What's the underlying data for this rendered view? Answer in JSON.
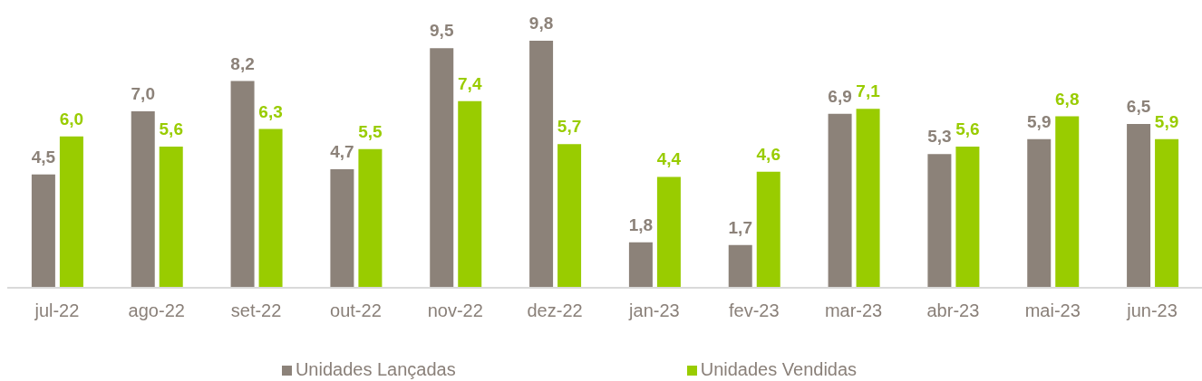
{
  "chart_data": {
    "type": "bar",
    "categories": [
      "jul-22",
      "ago-22",
      "set-22",
      "out-22",
      "nov-22",
      "dez-22",
      "jan-23",
      "fev-23",
      "mar-23",
      "abr-23",
      "mai-23",
      "jun-23"
    ],
    "series": [
      {
        "name": "Unidades Lançadas",
        "color": "#8c8279",
        "values": [
          4.5,
          7.0,
          8.2,
          4.7,
          9.5,
          9.8,
          1.8,
          1.7,
          6.9,
          5.3,
          5.9,
          6.5
        ],
        "value_labels": [
          "4,5",
          "7,0",
          "8,2",
          "4,7",
          "9,5",
          "9,8",
          "1,8",
          "1,7",
          "6,9",
          "5,3",
          "5,9",
          "6,5"
        ]
      },
      {
        "name": "Unidades Vendidas",
        "color": "#99cc00",
        "values": [
          6.0,
          5.6,
          6.3,
          5.5,
          7.4,
          5.7,
          4.4,
          4.6,
          7.1,
          5.6,
          6.8,
          5.9
        ],
        "value_labels": [
          "6,0",
          "5,6",
          "6,3",
          "5,5",
          "7,4",
          "5,7",
          "4,4",
          "4,6",
          "7,1",
          "5,6",
          "6,8",
          "5,9"
        ]
      }
    ],
    "legend": "bottom",
    "tick_labels": "x"
  }
}
